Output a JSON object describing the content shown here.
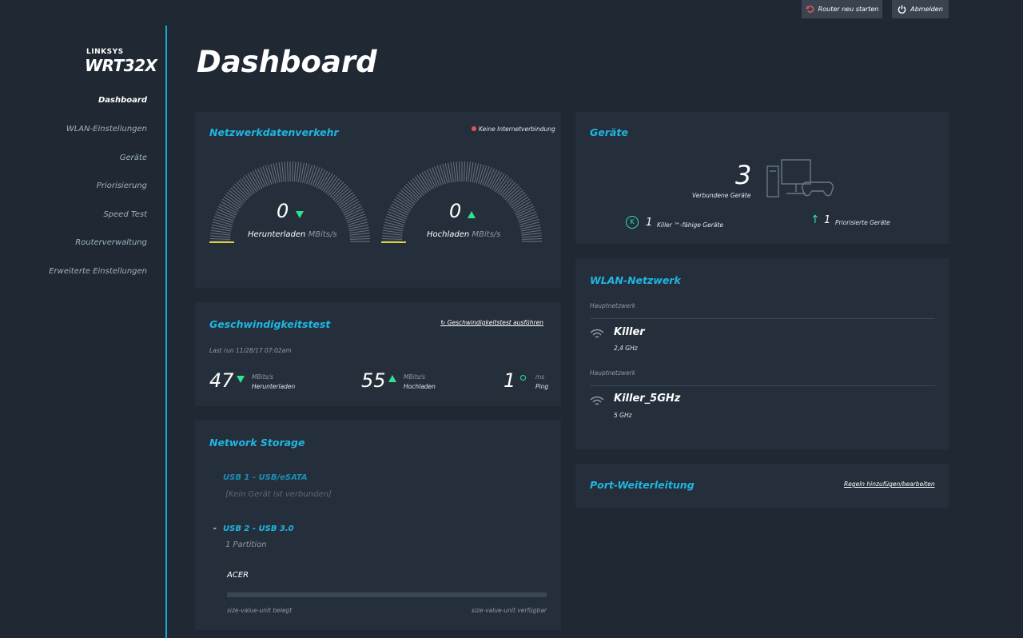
{
  "top_buttons": [
    "Router neu starten",
    "Abmelden"
  ],
  "logo": {
    "brand": "LINKSYS",
    "model": "WRT32X"
  },
  "nav": [
    "Dashboard",
    "WLAN-Einstellungen",
    "Geräte",
    "Priorisierung",
    "Speed Test",
    "Routerverwaltung",
    "Erweiterte Einstellungen"
  ],
  "page_title": "Dashboard",
  "traffic": {
    "title": "Netzwerkdatenverkehr",
    "status": "Keine Internetverbindung",
    "download": {
      "value": "0",
      "label": "Herunterladen",
      "unit": "MBits/s"
    },
    "upload": {
      "value": "0",
      "label": "Hochladen",
      "unit": "MBits/s"
    }
  },
  "speedtest": {
    "title": "Geschwindigkeitstest",
    "action": "Geschwindigkeitstest ausführen",
    "last_run": "Last run 11/28/17 07:02am",
    "download": {
      "value": "47",
      "unit": "MBits/s",
      "label": "Herunterladen"
    },
    "upload": {
      "value": "55",
      "unit": "MBits/s",
      "label": "Hochladen"
    },
    "ping": {
      "value": "1",
      "unit": "ms",
      "label": "Ping"
    }
  },
  "storage": {
    "title": "Network Storage",
    "usb1": {
      "name": "USB 1 - USB/eSATA",
      "status": "[Kein Gerät ist verbunden]"
    },
    "usb2": {
      "name": "USB 2 - USB 3.0",
      "partitions": "1 Partition",
      "device": "ACER",
      "used": "size-value-unit belegt",
      "free": "size-value-unit verfügbar"
    }
  },
  "devices": {
    "title": "Geräte",
    "connected": {
      "value": "3",
      "label": "Verbundene Geräte"
    },
    "killer": {
      "value": "1",
      "label": "Killer ™-fähige Geräte"
    },
    "prioritized": {
      "value": "1",
      "label": "Priorisierte Geräte"
    }
  },
  "wlan": {
    "title": "WLAN-Netzwerk",
    "networks": [
      {
        "type": "Hauptnetzwerk",
        "ssid": "Killer",
        "band": "2,4 GHz"
      },
      {
        "type": "Hauptnetzwerk",
        "ssid": "Killer_5GHz",
        "band": "5 GHz"
      }
    ]
  },
  "port_forwarding": {
    "title": "Port-Weiterleitung",
    "action": "Regeln hinzufügen/bearbeiten"
  }
}
